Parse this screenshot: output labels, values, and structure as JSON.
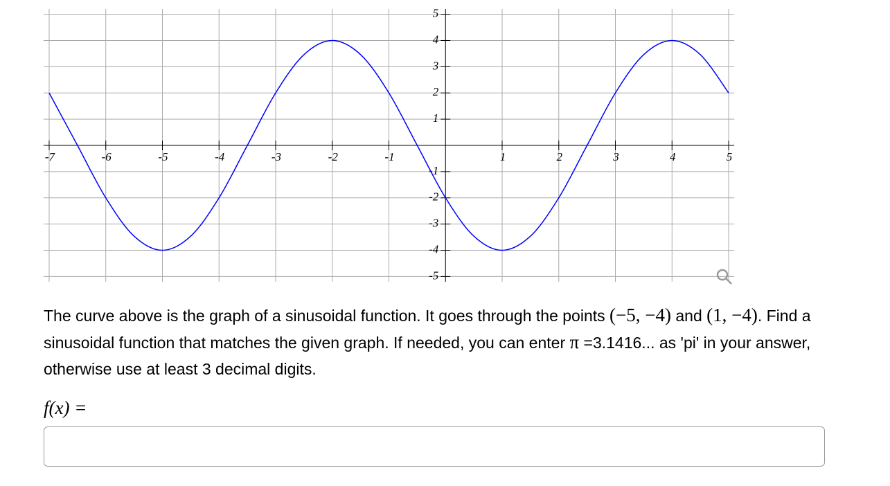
{
  "chart_data": {
    "type": "line",
    "x": [
      -7,
      -6.5,
      -6,
      -5.5,
      -5,
      -4.5,
      -4,
      -3.5,
      -3,
      -2.5,
      -2,
      -1.5,
      -1,
      -0.5,
      0,
      0.5,
      1,
      1.5,
      2,
      2.5,
      3,
      3.5,
      4,
      4.5,
      5
    ],
    "values": [
      2,
      0,
      -2,
      -3.46,
      -4,
      -3.46,
      -2,
      0,
      2,
      3.46,
      4,
      3.46,
      2,
      0,
      -2,
      -3.46,
      -4,
      -3.46,
      -2,
      0,
      2,
      3.46,
      4,
      3.46,
      2
    ],
    "color": "#0000ff",
    "xlim": [
      -7.1,
      5.1
    ],
    "ylim": [
      -5.2,
      5.2
    ],
    "xticks": [
      -7,
      -6,
      -5,
      -4,
      -3,
      -2,
      -1,
      1,
      2,
      3,
      4,
      5
    ],
    "yticks": [
      -5,
      -4,
      -3,
      -2,
      -1,
      1,
      2,
      3,
      4,
      5
    ],
    "grid": true
  },
  "problem": {
    "parts": [
      "The curve above is the graph of a sinusoidal function. It goes through the points ",
      "(−5, −4)",
      " and ",
      "(1, −4)",
      ". Find a sinusoidal function that matches the given graph. If needed, you can enter ",
      "π",
      " =3.1416... as 'pi' in your answer, otherwise use at least 3 decimal digits."
    ]
  },
  "answer": {
    "label": "f(x) ="
  }
}
